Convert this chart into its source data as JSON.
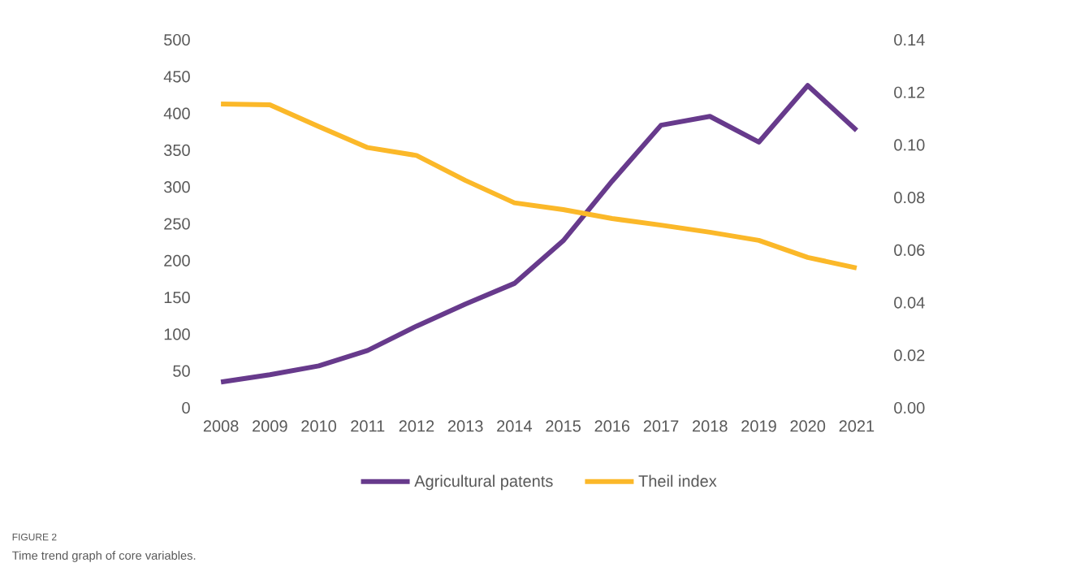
{
  "chart_data": {
    "type": "line",
    "categories": [
      "2008",
      "2009",
      "2010",
      "2011",
      "2012",
      "2013",
      "2014",
      "2015",
      "2016",
      "2017",
      "2018",
      "2019",
      "2020",
      "2021"
    ],
    "series": [
      {
        "name": "Agricultural patents",
        "color": "#673a8c",
        "values": [
          35,
          45,
          57,
          78,
          111,
          141,
          169,
          227,
          308,
          384,
          396,
          361,
          438,
          377
        ]
      },
      {
        "name": "Theil index",
        "color": "#fbb829",
        "axis": "y2",
        "values": [
          0.1156,
          0.1153,
          0.107,
          0.099,
          0.096,
          0.0865,
          0.078,
          0.0754,
          0.072,
          0.0695,
          0.0668,
          0.0637,
          0.0572,
          0.0532
        ]
      }
    ],
    "ylim": [
      0,
      500
    ],
    "yticks": [
      0,
      50,
      100,
      150,
      200,
      250,
      300,
      350,
      400,
      450,
      500
    ],
    "y2lim": [
      0,
      0.14
    ],
    "y2ticks": [
      {
        "value": 0,
        "label": "0.00"
      },
      {
        "value": 0.02,
        "label": "0.02"
      },
      {
        "value": 0.04,
        "label": "0.04"
      },
      {
        "value": 0.06,
        "label": "0.06"
      },
      {
        "value": 0.08,
        "label": "0.08"
      },
      {
        "value": 0.1,
        "label": "0.10"
      },
      {
        "value": 0.12,
        "label": "0.12"
      },
      {
        "value": 0.14,
        "label": "0.14"
      }
    ],
    "grid": false,
    "legend": "bottom",
    "marker": "none",
    "line_style": "solid",
    "annotations": [
      "FIGURE 2",
      "Time trend graph of core variables."
    ]
  }
}
